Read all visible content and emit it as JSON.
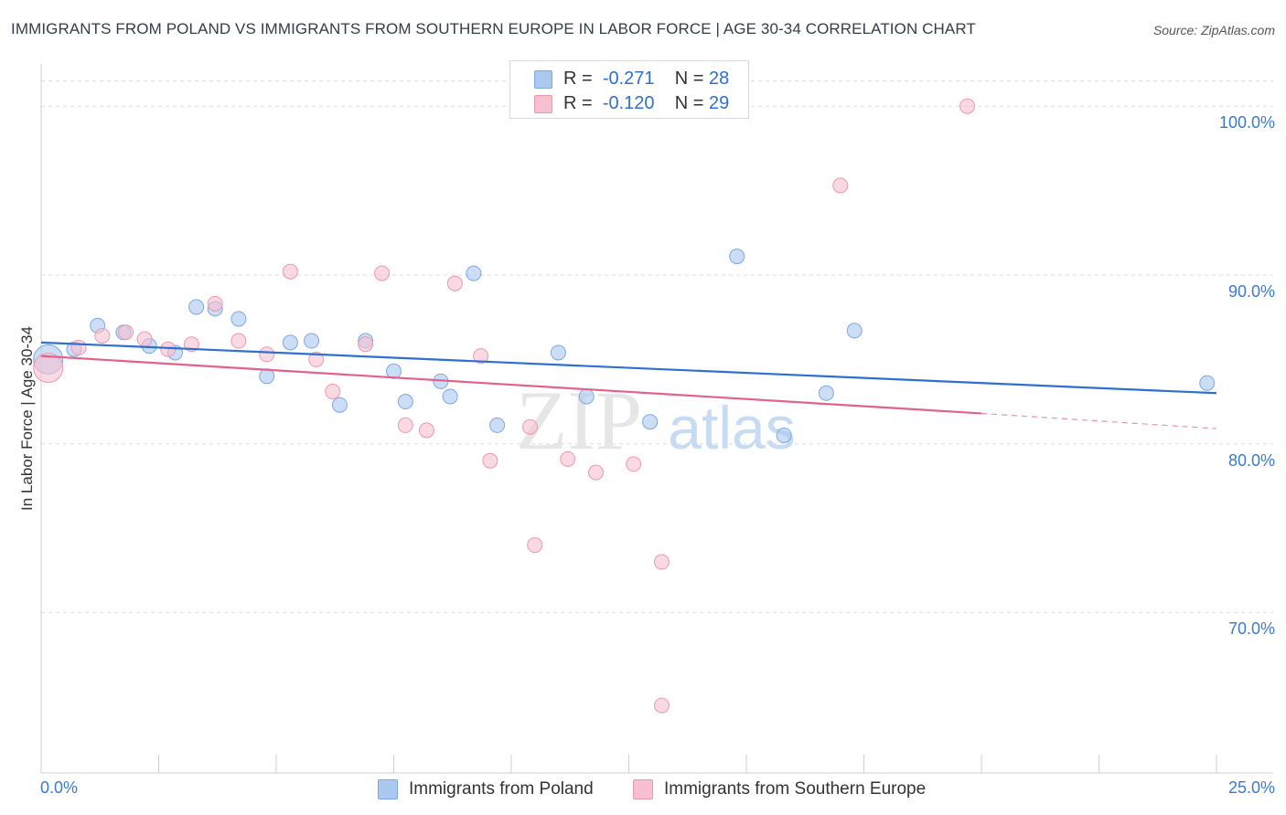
{
  "title": "IMMIGRANTS FROM POLAND VS IMMIGRANTS FROM SOUTHERN EUROPE IN LABOR FORCE | AGE 30-34 CORRELATION CHART",
  "source": "Source: ZipAtlas.com",
  "watermark": {
    "zip": "ZIP",
    "atlas": "atlas"
  },
  "legend": {
    "r_label": "R =",
    "n_label": "N =",
    "rows": [
      {
        "r": "-0.271",
        "n": "28",
        "color": "#aac8f0",
        "border": "#7ea7e0"
      },
      {
        "r": "-0.120",
        "n": "29",
        "color": "#f7bfd0",
        "border": "#ec97b1"
      }
    ]
  },
  "chart_data": {
    "type": "scatter",
    "title": "IMMIGRANTS FROM POLAND VS IMMIGRANTS FROM SOUTHERN EUROPE IN LABOR FORCE | AGE 30-34 CORRELATION CHART",
    "xlabel": "",
    "ylabel": "In Labor Force | Age 30-34",
    "xlim": [
      0,
      25
    ],
    "ylim": [
      60.5,
      102.5
    ],
    "x_tick_labels": [
      "0.0%",
      "25.0%"
    ],
    "y_ticks": [
      70,
      80,
      90,
      100
    ],
    "y_tick_labels": [
      "70.0%",
      "80.0%",
      "90.0%",
      "100.0%"
    ],
    "series": [
      {
        "name": "Immigrants from Poland",
        "color": "#aac8f0",
        "stroke": "#7ea7e0",
        "trend": {
          "x0": 0,
          "y0": 86.0,
          "x1": 25,
          "y1": 83.0,
          "color": "#2e6fd1"
        },
        "points": [
          {
            "x": 0.15,
            "y": 85.0,
            "big": true
          },
          {
            "x": 0.7,
            "y": 85.6
          },
          {
            "x": 1.2,
            "y": 87.0
          },
          {
            "x": 1.75,
            "y": 86.6
          },
          {
            "x": 2.3,
            "y": 85.8
          },
          {
            "x": 2.85,
            "y": 85.4
          },
          {
            "x": 3.3,
            "y": 88.1
          },
          {
            "x": 3.7,
            "y": 88.0
          },
          {
            "x": 4.2,
            "y": 87.4
          },
          {
            "x": 4.8,
            "y": 84.0
          },
          {
            "x": 5.3,
            "y": 86.0
          },
          {
            "x": 5.75,
            "y": 86.1
          },
          {
            "x": 6.35,
            "y": 82.3
          },
          {
            "x": 6.9,
            "y": 86.1
          },
          {
            "x": 7.5,
            "y": 84.3
          },
          {
            "x": 7.75,
            "y": 82.5
          },
          {
            "x": 8.7,
            "y": 82.8
          },
          {
            "x": 8.5,
            "y": 83.7
          },
          {
            "x": 9.2,
            "y": 90.1
          },
          {
            "x": 9.7,
            "y": 81.1
          },
          {
            "x": 11.0,
            "y": 85.4
          },
          {
            "x": 11.6,
            "y": 82.8
          },
          {
            "x": 12.95,
            "y": 81.3
          },
          {
            "x": 14.8,
            "y": 91.1
          },
          {
            "x": 15.8,
            "y": 80.5
          },
          {
            "x": 16.7,
            "y": 83.0
          },
          {
            "x": 17.3,
            "y": 86.7
          },
          {
            "x": 24.8,
            "y": 83.6
          }
        ]
      },
      {
        "name": "Immigrants from Southern Europe",
        "color": "#f7bfd0",
        "stroke": "#ec97b1",
        "trend": {
          "x0": 0,
          "y0": 85.2,
          "x1": 20.0,
          "y1": 81.8,
          "dash_to_x": 25,
          "dash_to_y": 80.9,
          "color": "#e0628d"
        },
        "points": [
          {
            "x": 0.15,
            "y": 84.5,
            "big": true
          },
          {
            "x": 0.8,
            "y": 85.7
          },
          {
            "x": 1.3,
            "y": 86.4
          },
          {
            "x": 1.8,
            "y": 86.6
          },
          {
            "x": 2.2,
            "y": 86.2
          },
          {
            "x": 2.7,
            "y": 85.6
          },
          {
            "x": 3.2,
            "y": 85.9
          },
          {
            "x": 3.7,
            "y": 88.3
          },
          {
            "x": 4.2,
            "y": 86.1
          },
          {
            "x": 4.8,
            "y": 85.3
          },
          {
            "x": 5.3,
            "y": 90.2
          },
          {
            "x": 5.85,
            "y": 85.0
          },
          {
            "x": 6.2,
            "y": 83.1
          },
          {
            "x": 6.9,
            "y": 85.9
          },
          {
            "x": 7.25,
            "y": 90.1
          },
          {
            "x": 7.75,
            "y": 81.1
          },
          {
            "x": 8.2,
            "y": 80.8
          },
          {
            "x": 8.8,
            "y": 89.5
          },
          {
            "x": 9.35,
            "y": 85.2
          },
          {
            "x": 9.55,
            "y": 79.0
          },
          {
            "x": 10.4,
            "y": 81.0
          },
          {
            "x": 10.5,
            "y": 74.0
          },
          {
            "x": 11.2,
            "y": 79.1
          },
          {
            "x": 11.8,
            "y": 78.3
          },
          {
            "x": 12.6,
            "y": 78.8
          },
          {
            "x": 13.2,
            "y": 73.0
          },
          {
            "x": 13.2,
            "y": 64.5
          },
          {
            "x": 17.0,
            "y": 95.3
          },
          {
            "x": 19.7,
            "y": 100.0
          }
        ]
      }
    ]
  }
}
